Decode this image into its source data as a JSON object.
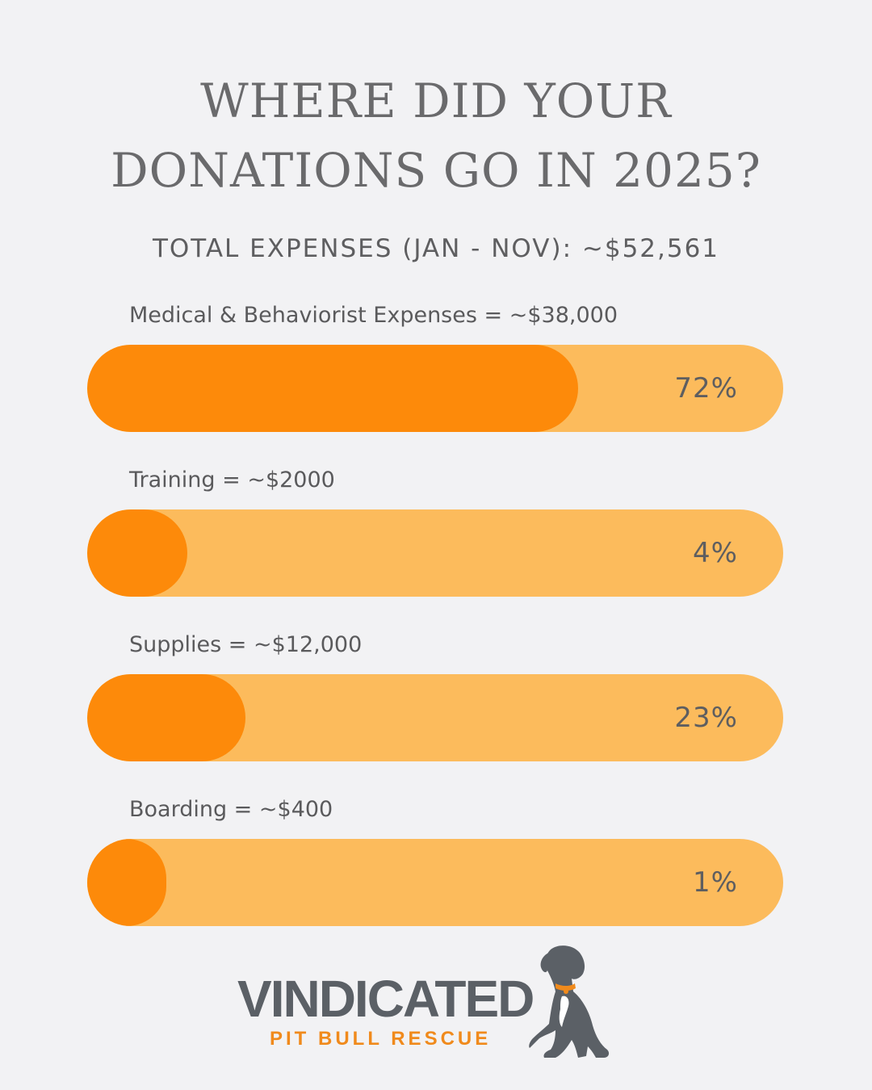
{
  "header": {
    "title_line1": "WHERE DID YOUR",
    "title_line2": "DONATIONS GO IN 2025?",
    "subtitle": "TOTAL EXPENSES (JAN - NOV): ~$52,561"
  },
  "chart_data": {
    "type": "bar",
    "orientation": "horizontal",
    "title": "WHERE DID YOUR DONATIONS GO IN 2025?",
    "subtitle": "TOTAL EXPENSES (JAN - NOV): ~$52,561",
    "categories": [
      "Medical & Behaviorist Expenses",
      "Training",
      "Supplies",
      "Boarding"
    ],
    "labels": [
      "Medical & Behaviorist Expenses = ~$38,000",
      "Training = ~$2000",
      "Supplies = ~$12,000",
      "Boarding = ~$400"
    ],
    "amounts": [
      38000,
      2000,
      12000,
      400
    ],
    "values": [
      72,
      4,
      23,
      1
    ],
    "value_labels": [
      "72%",
      "4%",
      "23%",
      "1%"
    ],
    "unit": "%",
    "xlim": [
      0,
      100
    ],
    "grid": false,
    "legend": "none",
    "colors": {
      "fill": "#fd8a0a",
      "track": "#fcbb5c",
      "text": "#5e5e60",
      "background": "#f2f2f4"
    }
  },
  "logo": {
    "wordmark": "VINDICATED",
    "tagline": "PIT BULL RESCUE",
    "icon": "dog-icon",
    "colors": {
      "wordmark": "#5b6066",
      "tagline": "#f08a1c",
      "collar": "#f08a1c"
    }
  }
}
